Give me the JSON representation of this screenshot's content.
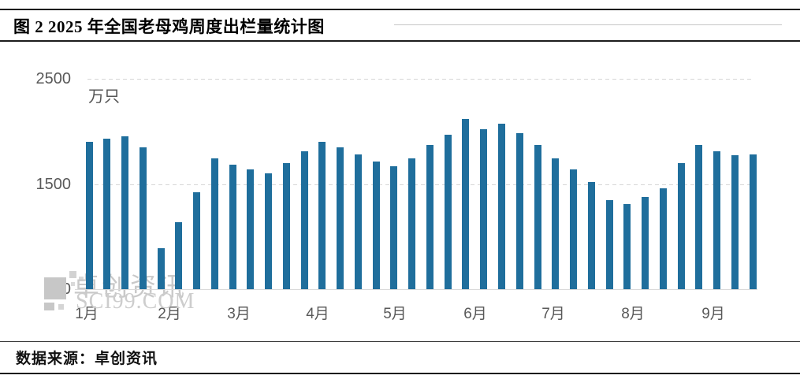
{
  "header": {
    "title": "图 2 2025 年全国老母鸡周度出栏量统计图"
  },
  "chart_data": {
    "type": "bar",
    "title": "2025 年全国老母鸡周度出栏量统计图",
    "unit_label": "万只",
    "ylabel": "万只",
    "ylim": [
      500,
      2500
    ],
    "y_ticks": [
      500,
      1500,
      2500
    ],
    "grid": "horizontal dashed gridlines at 1500 and 2500, solid light baseline at 500",
    "legend": "none",
    "bar_color": "#1f6e9c",
    "categories": [
      "1月",
      "2月",
      "3月",
      "4月",
      "5月",
      "6月",
      "7月",
      "8月",
      "9月"
    ],
    "month_start_bar_index": [
      0,
      4,
      8,
      13,
      17,
      21,
      26,
      30,
      34
    ],
    "x_axis_note": "weekly slaughter volume bars, Jan-Sep 2025",
    "values": [
      1900,
      1930,
      1950,
      1850,
      890,
      1140,
      1420,
      1740,
      1680,
      1640,
      1600,
      1700,
      1810,
      1900,
      1850,
      1780,
      1710,
      1670,
      1740,
      1870,
      1970,
      2120,
      2020,
      2070,
      1980,
      1870,
      1740,
      1640,
      1520,
      1350,
      1310,
      1380,
      1460,
      1700,
      1870,
      1810,
      1770,
      1780
    ]
  },
  "watermark": {
    "name": "卓创资讯",
    "site": "SCI99.COM"
  },
  "footer": {
    "source_label": "数据来源：卓创资讯"
  }
}
